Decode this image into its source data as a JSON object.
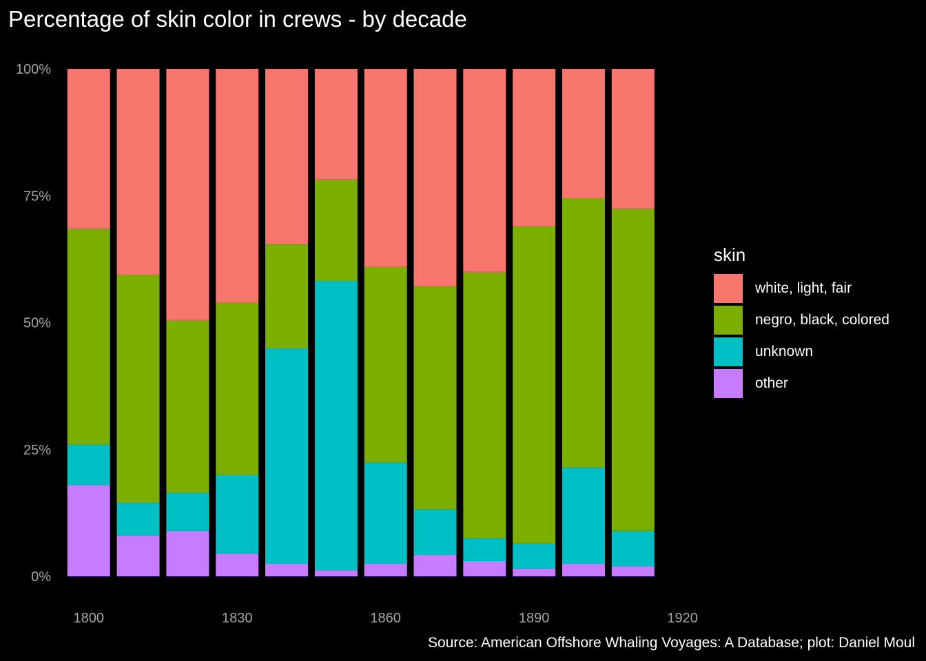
{
  "title": "Percentage of skin color in crews - by decade",
  "caption": "Source: American Offshore Whaling Voyages: A Database; plot: Daniel Moul",
  "colors": {
    "white": "#F8766D",
    "negro": "#7CAE00",
    "unknown": "#00BFC4",
    "other": "#C77CFF",
    "background": "#000000",
    "tick": "#a6a6a6"
  },
  "legend": {
    "title": "skin",
    "items": [
      {
        "key": "white",
        "label": "white, light, fair"
      },
      {
        "key": "negro",
        "label": "negro, black, colored"
      },
      {
        "key": "unknown",
        "label": "unknown"
      },
      {
        "key": "other",
        "label": "other"
      }
    ]
  },
  "chart_data": {
    "type": "bar",
    "stacked": true,
    "normalized": true,
    "title": "Percentage of skin color in crews - by decade",
    "xlabel": "",
    "ylabel": "",
    "ylim": [
      0,
      100
    ],
    "xlim": [
      1796,
      1922
    ],
    "x_ticks": [
      1800,
      1830,
      1860,
      1890,
      1920
    ],
    "y_ticks": [
      0,
      25,
      50,
      75,
      100
    ],
    "y_tick_labels": [
      "0%",
      "25%",
      "50%",
      "75%",
      "100%"
    ],
    "grid": false,
    "legend_position": "right",
    "categories": [
      1800,
      1810,
      1820,
      1830,
      1840,
      1850,
      1860,
      1870,
      1880,
      1890,
      1900,
      1910
    ],
    "series": [
      {
        "name": "other",
        "key": "other",
        "values": [
          18,
          8,
          9,
          4.5,
          2.5,
          1.2,
          2.5,
          4.2,
          3,
          1.5,
          2.5,
          2
        ]
      },
      {
        "name": "unknown",
        "key": "unknown",
        "values": [
          8,
          6.5,
          7.5,
          15.5,
          42.5,
          57,
          20,
          9,
          4.5,
          5,
          19,
          7
        ]
      },
      {
        "name": "negro, black, colored",
        "key": "negro",
        "values": [
          42.5,
          45,
          34,
          34,
          20.5,
          20,
          38.5,
          44,
          52.5,
          62.5,
          53,
          63.5
        ]
      },
      {
        "name": "white, light, fair",
        "key": "white",
        "values": [
          31.5,
          40.5,
          49.5,
          46,
          34.5,
          21.8,
          39,
          42.8,
          40,
          31,
          25.5,
          27.5
        ]
      }
    ]
  }
}
